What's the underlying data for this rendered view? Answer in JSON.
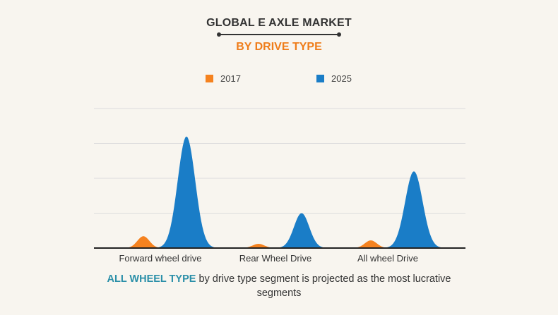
{
  "title": "GLOBAL E AXLE MARKET",
  "subtitle": "BY DRIVE TYPE",
  "legend": [
    {
      "label": "2017",
      "color": "#f5821f"
    },
    {
      "label": "2025",
      "color": "#1a7dc7"
    }
  ],
  "caption": {
    "highlight": "ALL WHEEL TYPE",
    "text": " by drive type segment is projected as the most lucrative segments"
  },
  "chart_data": {
    "type": "area",
    "shape": "bell-peaks",
    "categories": [
      "Forward wheel drive",
      "Rear Wheel Drive",
      "All wheel Drive"
    ],
    "series": [
      {
        "name": "2017",
        "color": "#f5821f",
        "values": [
          0.34,
          0.12,
          0.22
        ]
      },
      {
        "name": "2025",
        "color": "#1a7dc7",
        "values": [
          3.2,
          1.0,
          2.2
        ]
      }
    ],
    "ylim": [
      0,
      4
    ],
    "grid": true,
    "legend_position": "top"
  }
}
